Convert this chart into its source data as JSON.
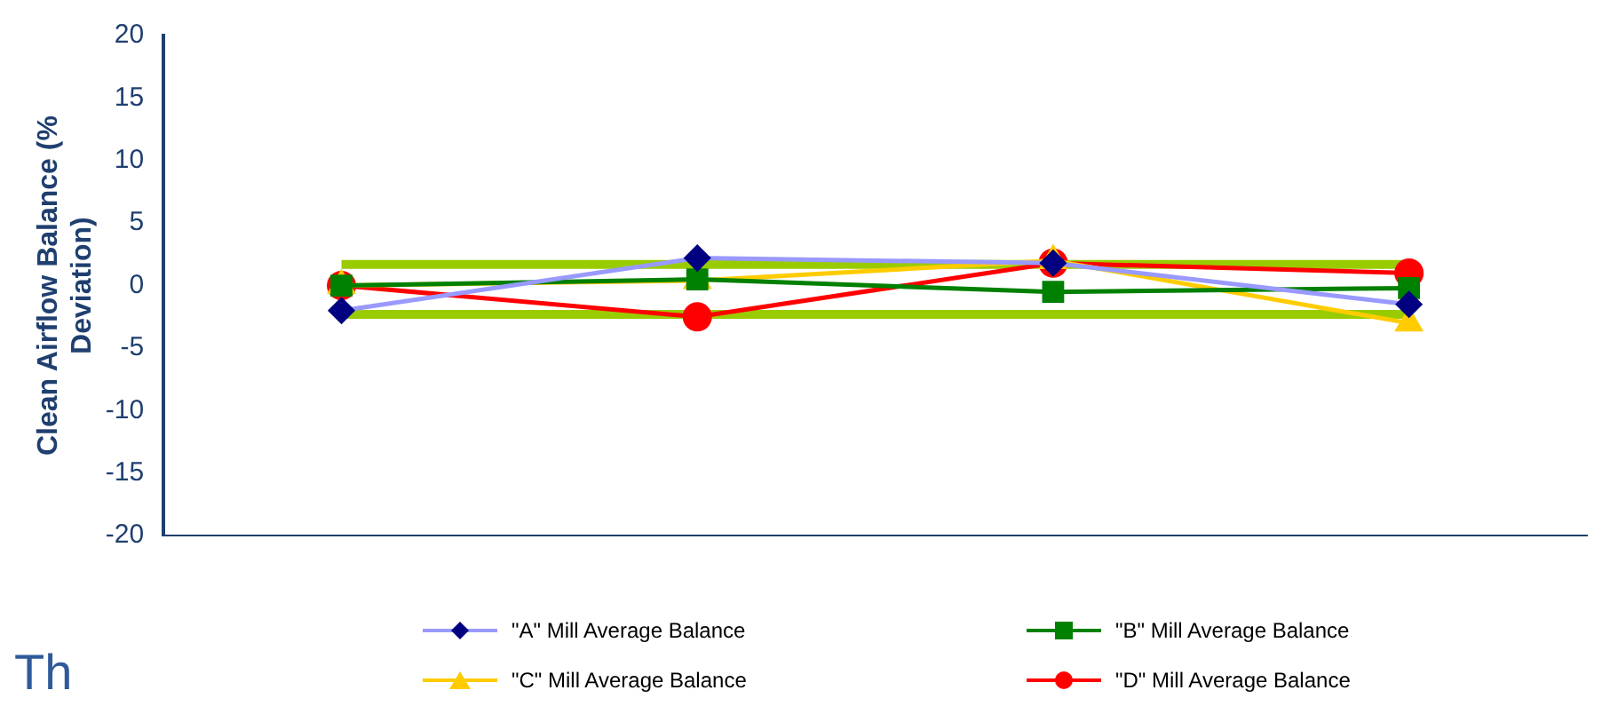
{
  "chart_data": {
    "type": "line",
    "ylabel": "Clean Airflow Balance (% Deviation)",
    "categories": [
      null,
      null,
      null,
      null
    ],
    "ylim": [
      -20,
      20
    ],
    "yticks": [
      -20,
      -15,
      -10,
      -5,
      0,
      5,
      10,
      15,
      20
    ],
    "legend": "bottom",
    "series": [
      {
        "name": "\"A\" Mill Average Balance",
        "color": "#9999ff",
        "colors": [
          "#000080",
          "#000080",
          "#000080",
          "#000080"
        ],
        "marker": "diamond",
        "values": [
          -2,
          2.2,
          1.8,
          -1.5
        ]
      },
      {
        "name": "\"B\" Mill Average Balance",
        "color": "#008000",
        "marker": "square",
        "values": [
          0,
          0.5,
          -0.5,
          -0.2
        ]
      },
      {
        "name": "\"C\" Mill Average Balance",
        "color": "#ffcc00",
        "marker": "triangle",
        "values": [
          0,
          0.4,
          2,
          -3
        ]
      },
      {
        "name": "\"D\" Mill Average Balance",
        "color": "#ff0000",
        "marker": "circle",
        "values": [
          0,
          -2.5,
          1.8,
          1
        ]
      },
      {
        "color": "#99cc00",
        "marker": "none",
        "values": [
          1.7,
          1.7,
          1.7,
          1.7
        ]
      },
      {
        "color": "#99cc00",
        "marker": "none",
        "values": [
          -2.3,
          -2.3,
          -2.3,
          -2.3
        ]
      }
    ],
    "annotations": [
      "Th"
    ]
  }
}
